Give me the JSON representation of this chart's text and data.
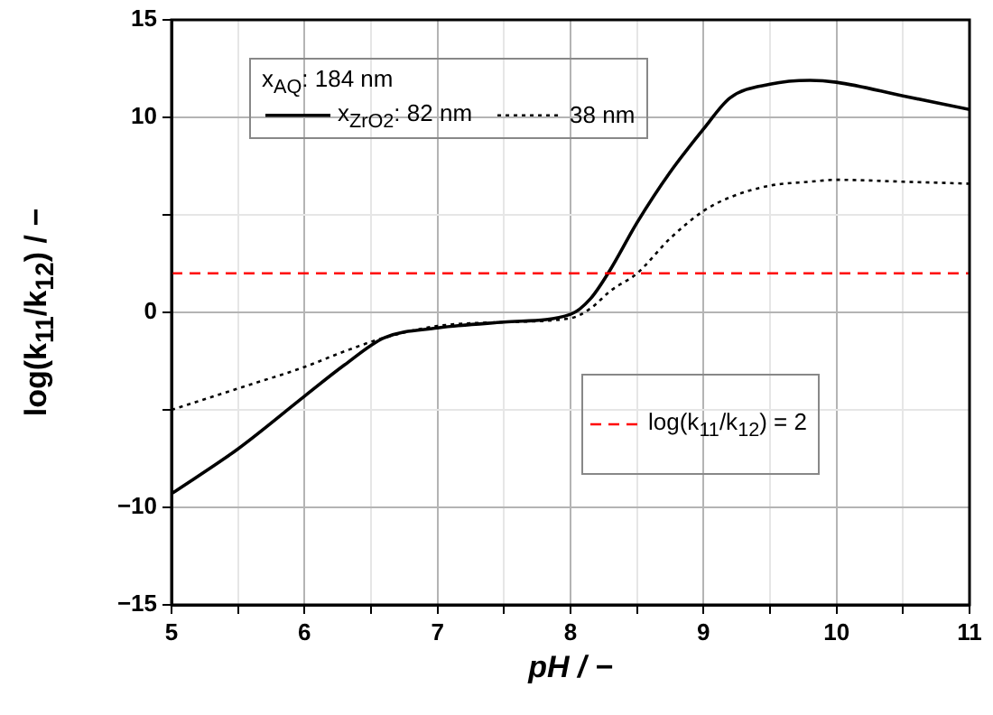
{
  "chart_data": {
    "type": "line",
    "xlabel": "pH / −",
    "ylabel": "log(k$_{11}$/k$_{12}$) / −",
    "legend_title": "x$_{AQ}$: 184 nm",
    "legend": "top left",
    "grid": true,
    "marker": "none",
    "xlim": [
      5,
      11
    ],
    "ylim": [
      -15,
      15
    ],
    "xticks": [
      5,
      {
        "value": 5.5,
        "label": null
      },
      6,
      {
        "value": 6.5,
        "label": null
      },
      7,
      {
        "value": 7.5,
        "label": null
      },
      8,
      {
        "value": 8.5,
        "label": null
      },
      9,
      {
        "value": 9.5,
        "label": null
      },
      10,
      {
        "value": 10.5,
        "label": null
      },
      11
    ],
    "yticks": [
      -15,
      -10,
      {
        "value": -5,
        "label": null
      },
      0,
      {
        "value": 5,
        "label": null
      },
      10,
      15
    ],
    "x": [
      5,
      5.5,
      6,
      6.3,
      6.6,
      7,
      7.5,
      8,
      8.15,
      8.3,
      8.5,
      8.75,
      9,
      9.2,
      9.5,
      9.8,
      10,
      10.5,
      11
    ],
    "series": [
      {
        "name": "x$_{ZrO2}$: 82 nm",
        "color": "#000000",
        "line_style": "solid",
        "values": [
          -9.3,
          -7.0,
          -4.3,
          -2.7,
          -1.3,
          -0.8,
          -0.5,
          -0.1,
          0.7,
          2.2,
          4.6,
          7.2,
          9.4,
          11.0,
          11.7,
          11.9,
          11.8,
          11.1,
          10.4
        ]
      },
      {
        "name": "38 nm",
        "color": "#000000",
        "line_style": "dotted",
        "values": [
          -5.0,
          -3.9,
          -2.8,
          -2.0,
          -1.3,
          -0.7,
          -0.5,
          -0.3,
          0.2,
          1.1,
          2.0,
          3.8,
          5.2,
          5.9,
          6.5,
          6.7,
          6.8,
          6.7,
          6.6
        ]
      }
    ],
    "ref_lines": [
      {
        "axis": "y",
        "value": 2,
        "label": "log(k$_{11}$/k$_{12}$) = 2",
        "color": "#ff0000",
        "line_style": "dashed"
      }
    ]
  }
}
